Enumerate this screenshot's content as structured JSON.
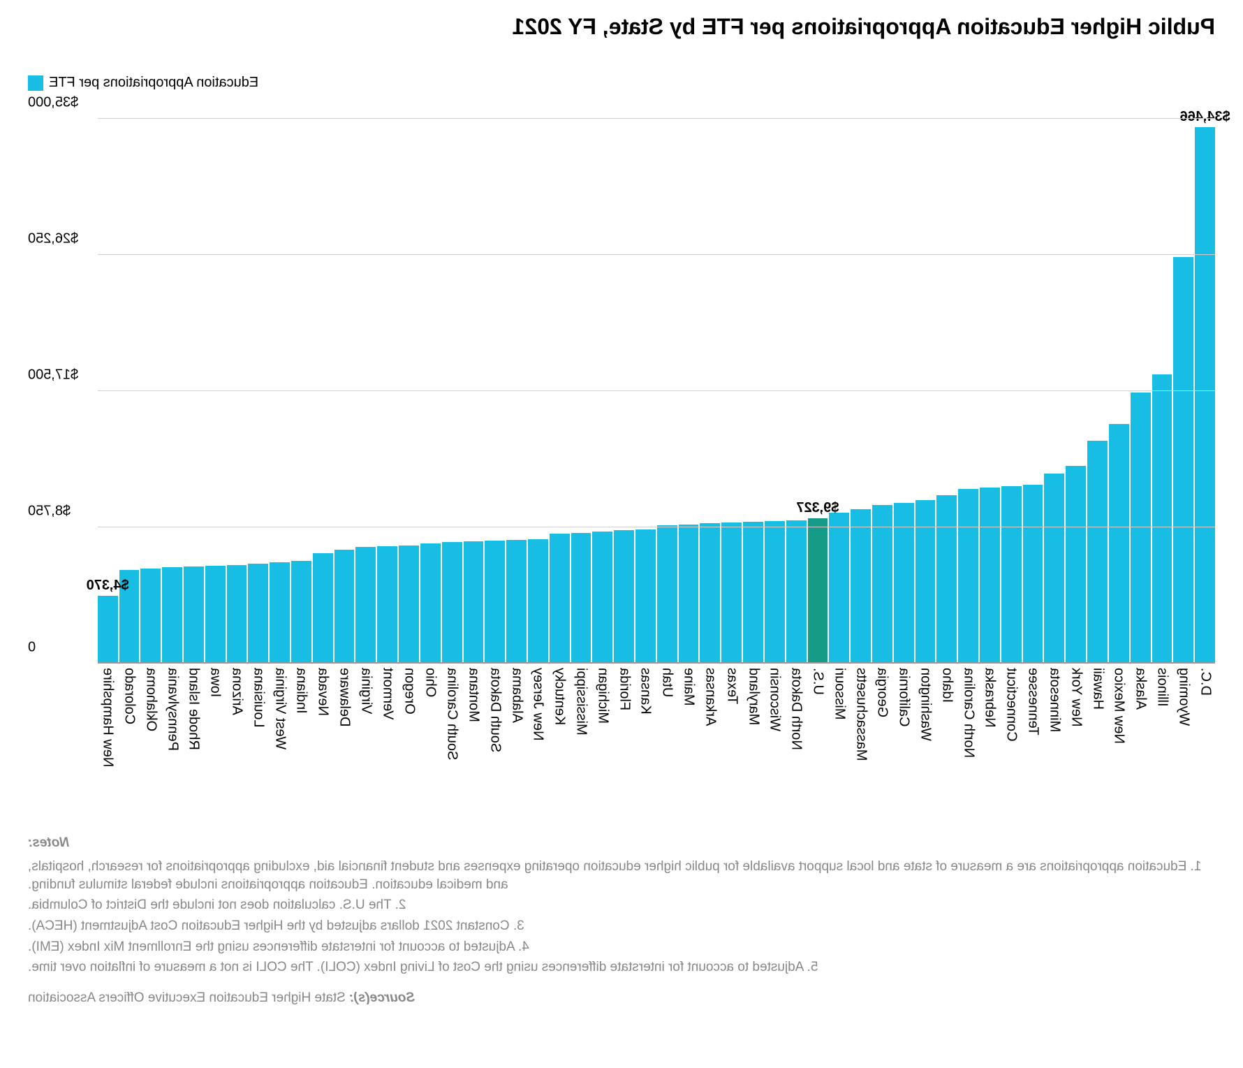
{
  "title": "Public Higher Education Appropriations per FTE by State, FY 2021",
  "legend": {
    "label": "Education Appropriations per FTE",
    "color": "#18bde4"
  },
  "chart": {
    "type": "bar",
    "ylabel_axis": "",
    "ymax": 35000,
    "ymin": 0,
    "yticks": [
      0,
      8750,
      17500,
      26250,
      35000
    ],
    "ytick_labels": [
      "0",
      "$8,750",
      "$17,500",
      "$26,250",
      "$35,000"
    ],
    "grid_color": "#d0d0d0",
    "background_color": "#ffffff",
    "bar_color": "#18bde4",
    "highlight_color": "#159b88",
    "title_fontsize": 32,
    "label_fontsize": 20,
    "value_label_fontsize": 20,
    "callouts": [
      {
        "state": "D.C.",
        "label": "$34,466"
      },
      {
        "state": "U.S.",
        "label": "$9,327"
      },
      {
        "state": "New Hampshire",
        "label": "$4,370"
      }
    ],
    "data": [
      {
        "state": "D.C.",
        "value": 34466,
        "highlight": false
      },
      {
        "state": "Wyoming",
        "value": 26100,
        "highlight": false
      },
      {
        "state": "Illinois",
        "value": 18600,
        "highlight": false
      },
      {
        "state": "Alaska",
        "value": 17400,
        "highlight": false
      },
      {
        "state": "New Mexico",
        "value": 15400,
        "highlight": false
      },
      {
        "state": "Hawaii",
        "value": 14300,
        "highlight": false
      },
      {
        "state": "New York",
        "value": 12700,
        "highlight": false
      },
      {
        "state": "Minnesota",
        "value": 12200,
        "highlight": false
      },
      {
        "state": "Tennessee",
        "value": 11500,
        "highlight": false
      },
      {
        "state": "Connecticut",
        "value": 11400,
        "highlight": false
      },
      {
        "state": "Nebraska",
        "value": 11300,
        "highlight": false
      },
      {
        "state": "North Carolina",
        "value": 11200,
        "highlight": false
      },
      {
        "state": "Idaho",
        "value": 10800,
        "highlight": false
      },
      {
        "state": "Washington",
        "value": 10500,
        "highlight": false
      },
      {
        "state": "California",
        "value": 10300,
        "highlight": false
      },
      {
        "state": "Georgia",
        "value": 10200,
        "highlight": false
      },
      {
        "state": "Massachusetts",
        "value": 9900,
        "highlight": false
      },
      {
        "state": "Missouri",
        "value": 9700,
        "highlight": false
      },
      {
        "state": "U.S.",
        "value": 9327,
        "highlight": true
      },
      {
        "state": "North Dakota",
        "value": 9200,
        "highlight": false
      },
      {
        "state": "Wisconsin",
        "value": 9150,
        "highlight": false
      },
      {
        "state": "Maryland",
        "value": 9100,
        "highlight": false
      },
      {
        "state": "Texas",
        "value": 9050,
        "highlight": false
      },
      {
        "state": "Arkansas",
        "value": 9000,
        "highlight": false
      },
      {
        "state": "Maine",
        "value": 8950,
        "highlight": false
      },
      {
        "state": "Utah",
        "value": 8900,
        "highlight": false
      },
      {
        "state": "Kansas",
        "value": 8600,
        "highlight": false
      },
      {
        "state": "Florida",
        "value": 8550,
        "highlight": false
      },
      {
        "state": "Michigan",
        "value": 8500,
        "highlight": false
      },
      {
        "state": "Mississippi",
        "value": 8400,
        "highlight": false
      },
      {
        "state": "Kentucky",
        "value": 8350,
        "highlight": false
      },
      {
        "state": "New Jersey",
        "value": 8000,
        "highlight": false
      },
      {
        "state": "Alabama",
        "value": 7950,
        "highlight": false
      },
      {
        "state": "South Dakota",
        "value": 7900,
        "highlight": false
      },
      {
        "state": "Montana",
        "value": 7850,
        "highlight": false
      },
      {
        "state": "South Carolina",
        "value": 7800,
        "highlight": false
      },
      {
        "state": "Ohio",
        "value": 7700,
        "highlight": false
      },
      {
        "state": "Oregon",
        "value": 7600,
        "highlight": false
      },
      {
        "state": "Vermont",
        "value": 7550,
        "highlight": false
      },
      {
        "state": "Virginia",
        "value": 7500,
        "highlight": false
      },
      {
        "state": "Delaware",
        "value": 7300,
        "highlight": false
      },
      {
        "state": "Nevada",
        "value": 7100,
        "highlight": false
      },
      {
        "state": "Indiana",
        "value": 6600,
        "highlight": false
      },
      {
        "state": "West Virginia",
        "value": 6500,
        "highlight": false
      },
      {
        "state": "Louisiana",
        "value": 6400,
        "highlight": false
      },
      {
        "state": "Arizona",
        "value": 6350,
        "highlight": false
      },
      {
        "state": "Iowa",
        "value": 6300,
        "highlight": false
      },
      {
        "state": "Rhode Island",
        "value": 6250,
        "highlight": false
      },
      {
        "state": "Pennsylvania",
        "value": 6200,
        "highlight": false
      },
      {
        "state": "Oklahoma",
        "value": 6100,
        "highlight": false
      },
      {
        "state": "Colorado",
        "value": 6000,
        "highlight": false
      },
      {
        "state": "New Hampshire",
        "value": 4370,
        "highlight": false
      }
    ]
  },
  "notes": {
    "title": "Notes:",
    "lines": [
      "1. Education appropriations are a measure of state and local support available for public higher education operating expenses and student financial aid, excluding appropriations for research, hospitals, and medical education. Education appropriations include federal stimulus funding.",
      "2. The U.S. calculation does not include the District of Columbia.",
      "3. Constant 2021 dollars adjusted by the Higher Education Cost Adjustment (HECA).",
      "4. Adjusted to account for interstate differences using the Enrollment Mix Index (EMI).",
      "5. Adjusted to account for interstate differences using the Cost of Living Index (COLI). The COLI is not a measure of inflation over time."
    ]
  },
  "source": {
    "label": "Source(s): ",
    "text": "State Higher Education Executive Officers Association"
  }
}
